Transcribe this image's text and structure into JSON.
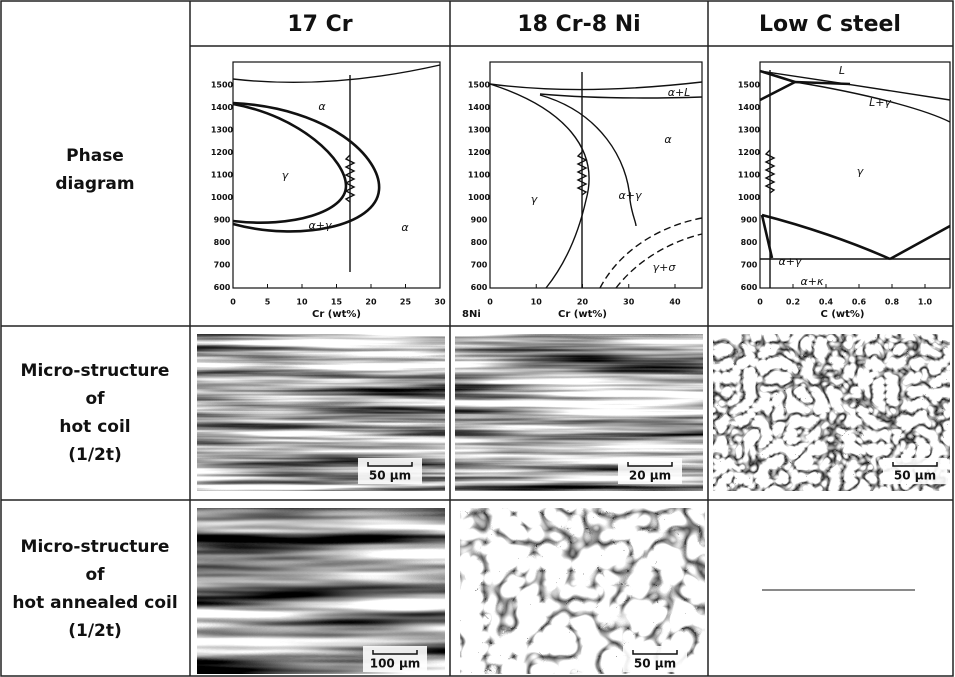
{
  "header": {
    "columns": [
      "17 Cr",
      "18 Cr-8 Ni",
      "Low C steel"
    ]
  },
  "rows": [
    {
      "label": [
        "Phase",
        "diagram"
      ]
    },
    {
      "label": [
        "Micro-structure",
        "of",
        "hot coil",
        "(1/2t)"
      ],
      "scale_bars": [
        "50 µm",
        "20 µm",
        "50 µm"
      ]
    },
    {
      "label": [
        "Micro-structure",
        "of",
        "hot annealed coil",
        "(1/2t)"
      ],
      "scale_bars": [
        "100 µm",
        "50 µm"
      ]
    }
  ],
  "diagrams": [
    {
      "y_ticks": [
        "1500",
        "1400",
        "1300",
        "1200",
        "1100",
        "1000",
        "900",
        "800",
        "700",
        "600"
      ],
      "x_ticks": [
        "0",
        "5",
        "10",
        "15",
        "20",
        "25",
        "30"
      ],
      "x_label": "Cr (wt%)",
      "phase_labels": [
        "α",
        "γ",
        "α+γ",
        "α"
      ]
    },
    {
      "y_ticks": [
        "1500",
        "1400",
        "1300",
        "1200",
        "1100",
        "1000",
        "900",
        "800",
        "700",
        "600"
      ],
      "x_ticks": [
        "0",
        "10",
        "20",
        "30",
        "40"
      ],
      "x_prefix": "8Ni",
      "x_label": "Cr (wt%)",
      "phase_labels": [
        "α+L",
        "α",
        "γ",
        "α+γ",
        "γ+σ"
      ]
    },
    {
      "y_ticks": [
        "1500",
        "1400",
        "1300",
        "1200",
        "1100",
        "1000",
        "900",
        "800",
        "700",
        "600"
      ],
      "x_ticks": [
        "0",
        "0.2",
        "0.4",
        "0.6",
        "0.8",
        "1.0"
      ],
      "x_label": "C (wt%)",
      "phase_labels": [
        "L",
        "L+γ",
        "γ",
        "α+γ",
        "α+κ"
      ]
    }
  ]
}
